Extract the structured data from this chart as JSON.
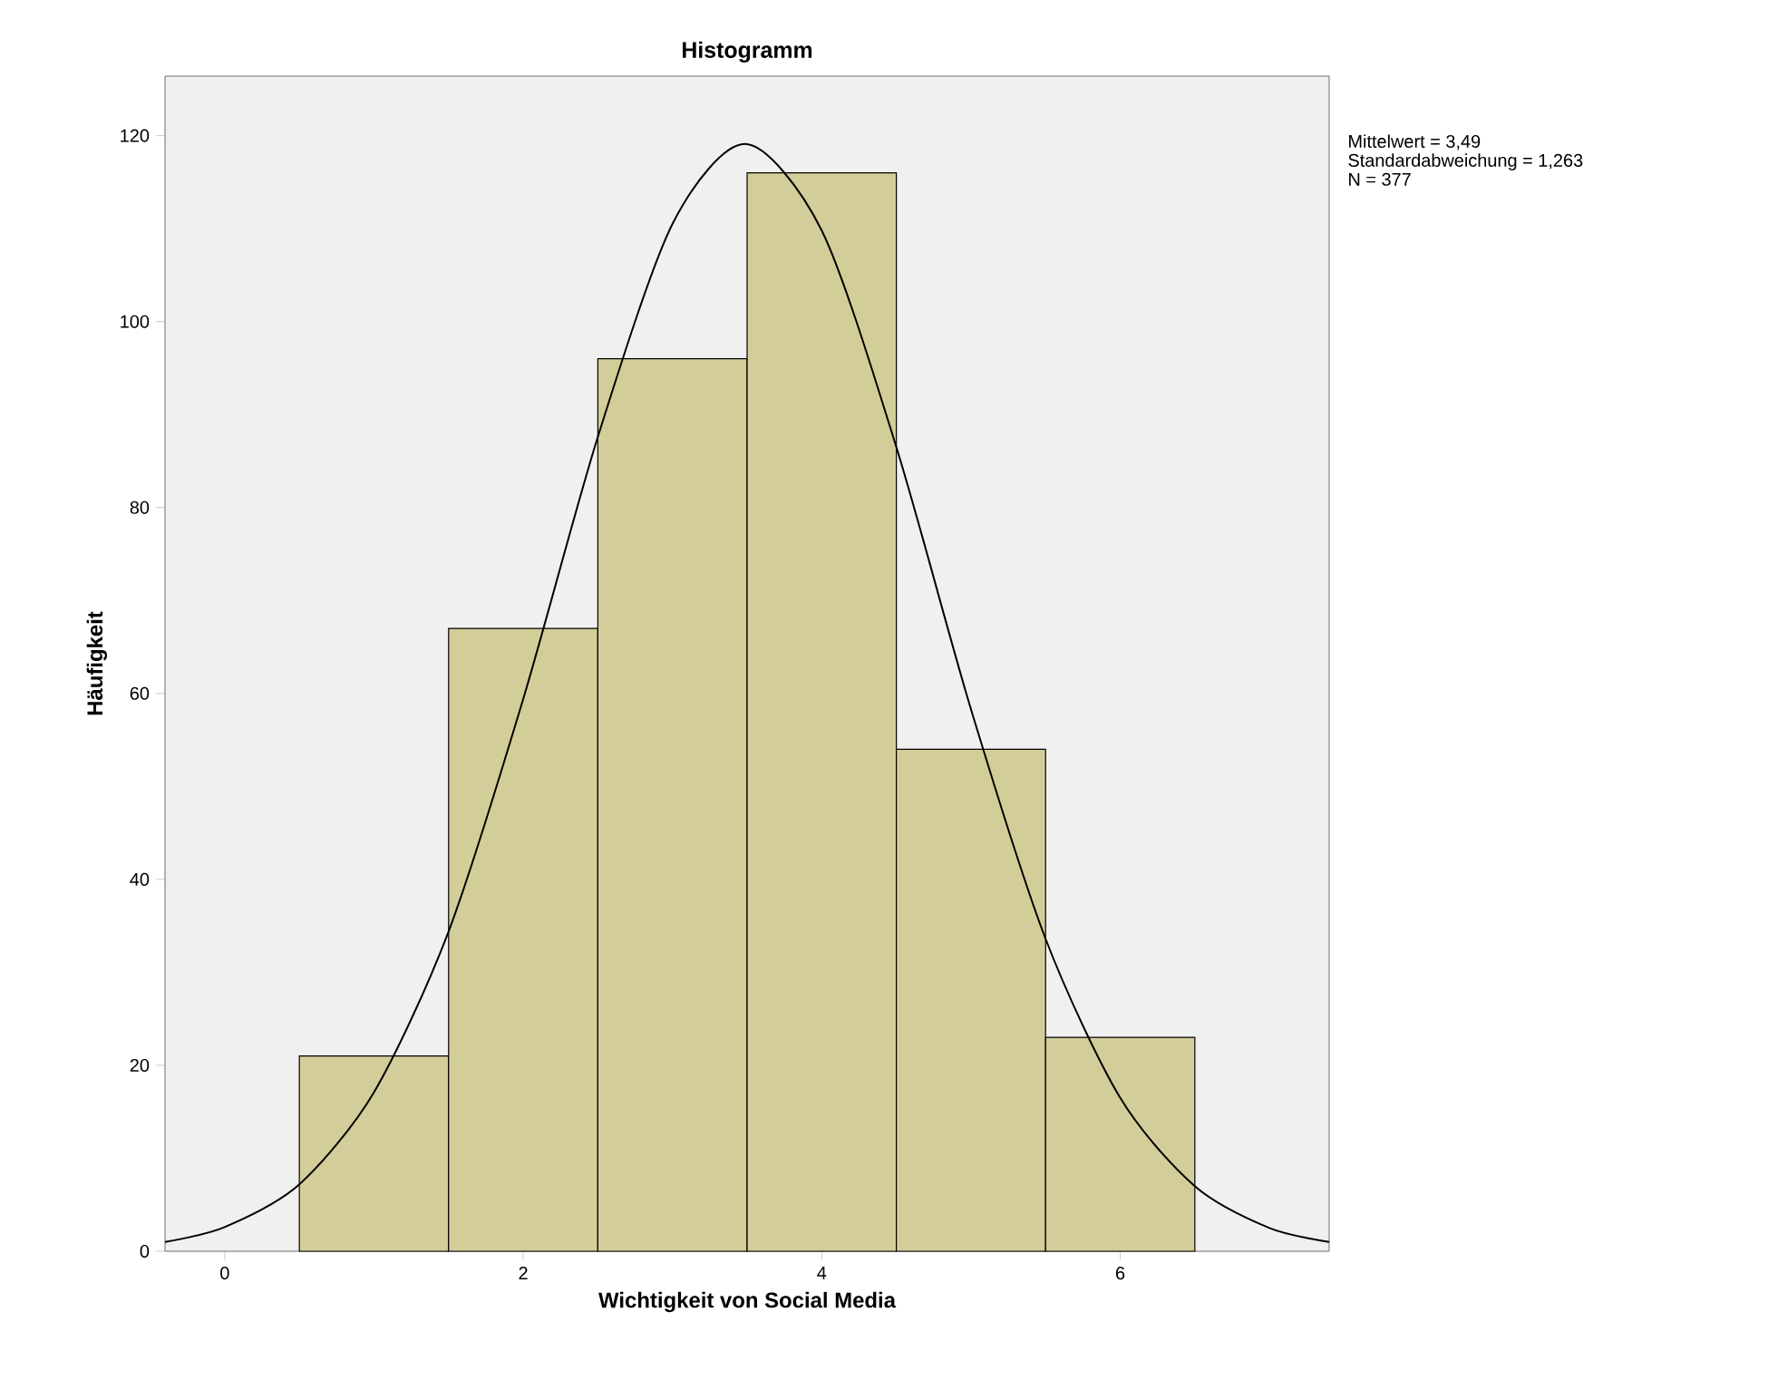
{
  "chart_data": {
    "type": "histogram",
    "title": "Histogramm",
    "xlabel": "Wichtigkeit von Social Media",
    "ylabel": "Häufigkeit",
    "bins": [
      0.5,
      1.5,
      2.5,
      3.5,
      4.5,
      5.5,
      6.5
    ],
    "values": [
      21,
      67,
      96,
      116,
      54,
      23
    ],
    "color": "#d3ce99",
    "series": [
      {
        "type": "line",
        "color": "#000000",
        "x": [
          -0.4,
          0,
          0.5,
          1,
          1.5,
          2,
          2.5,
          3,
          3.49,
          4,
          4.5,
          5,
          5.5,
          6,
          6.5,
          7,
          7.4
        ],
        "values": [
          1.0,
          2.6,
          7.2,
          17.1,
          34.4,
          59.4,
          87.6,
          110.5,
          119.1,
          109.8,
          86.5,
          58.3,
          33.6,
          16.5,
          7.0,
          2.5,
          1.0
        ]
      }
    ],
    "xlim": [
      -0.4,
      7.4
    ],
    "ylim": [
      0,
      126.4
    ],
    "xticks": [
      0,
      2,
      4,
      6
    ],
    "yticks": [
      0,
      20,
      40,
      60,
      80,
      100,
      120
    ],
    "grid": false,
    "annotations": [
      "Mittelwert = 3,49",
      "Standardabweichung = 1,263",
      "N = 377"
    ]
  }
}
